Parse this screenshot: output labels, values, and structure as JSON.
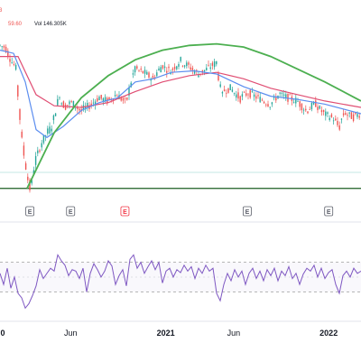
{
  "chart_data": {
    "type": "candlestick",
    "colors": {
      "up": "#26a69a",
      "down": "#ef5350",
      "ma_fast": "#5b8def",
      "ma_slow": "#e04e73",
      "arc": "#4caf50",
      "support_line": "#1b5e20",
      "rsi_line": "#7e57c2",
      "rsi_band": "#b0a4d6",
      "earnings_badge": "#5d606b",
      "earnings_badge_alert": "#f23645"
    },
    "legend": {
      "fragment_left": "3",
      "fragment_right": "59.60",
      "volume": "Vol 146.305K"
    },
    "x_labels": [
      {
        "text": "0",
        "date": "2020-01",
        "bold": true
      },
      {
        "text": "Jun",
        "date": "2020-06",
        "bold": false
      },
      {
        "text": "2021",
        "date": "2021-01",
        "bold": true
      },
      {
        "text": "Jun",
        "date": "2021-06",
        "bold": false
      },
      {
        "text": "2022",
        "date": "2022-01",
        "bold": true
      }
    ],
    "earnings_markers": [
      {
        "label": "E",
        "date": "2020-03",
        "alert": false
      },
      {
        "label": "E",
        "date": "2020-06",
        "alert": false
      },
      {
        "label": "E",
        "date": "2020-10",
        "alert": true
      },
      {
        "label": "E",
        "date": "2021-07",
        "alert": false
      },
      {
        "label": "E",
        "date": "2022-01",
        "alert": false
      }
    ],
    "price_series": [
      {
        "t": 0,
        "v": 93
      },
      {
        "t": 6,
        "v": 92
      },
      {
        "t": 12,
        "v": 85
      },
      {
        "t": 18,
        "v": 79
      },
      {
        "t": 21,
        "v": 60
      },
      {
        "t": 25,
        "v": 35
      },
      {
        "t": 30,
        "v": 15
      },
      {
        "t": 34,
        "v": 3
      },
      {
        "t": 40,
        "v": 20
      },
      {
        "t": 46,
        "v": 30
      },
      {
        "t": 52,
        "v": 37
      },
      {
        "t": 58,
        "v": 42
      },
      {
        "t": 66,
        "v": 60
      },
      {
        "t": 72,
        "v": 55
      },
      {
        "t": 80,
        "v": 57
      },
      {
        "t": 90,
        "v": 52
      },
      {
        "t": 100,
        "v": 55
      },
      {
        "t": 110,
        "v": 60
      },
      {
        "t": 120,
        "v": 58
      },
      {
        "t": 130,
        "v": 62
      },
      {
        "t": 140,
        "v": 57
      },
      {
        "t": 150,
        "v": 78
      },
      {
        "t": 160,
        "v": 76
      },
      {
        "t": 170,
        "v": 72
      },
      {
        "t": 180,
        "v": 80
      },
      {
        "t": 190,
        "v": 77
      },
      {
        "t": 200,
        "v": 83
      },
      {
        "t": 210,
        "v": 80
      },
      {
        "t": 220,
        "v": 75
      },
      {
        "t": 230,
        "v": 78
      },
      {
        "t": 240,
        "v": 82
      },
      {
        "t": 246,
        "v": 64
      },
      {
        "t": 256,
        "v": 66
      },
      {
        "t": 266,
        "v": 60
      },
      {
        "t": 276,
        "v": 63
      },
      {
        "t": 290,
        "v": 59
      },
      {
        "t": 300,
        "v": 56
      },
      {
        "t": 310,
        "v": 62
      },
      {
        "t": 320,
        "v": 60
      },
      {
        "t": 330,
        "v": 58
      },
      {
        "t": 340,
        "v": 52
      },
      {
        "t": 350,
        "v": 56
      },
      {
        "t": 360,
        "v": 50
      },
      {
        "t": 370,
        "v": 47
      },
      {
        "t": 376,
        "v": 42
      },
      {
        "t": 382,
        "v": 50
      },
      {
        "t": 392,
        "v": 48
      },
      {
        "t": 400,
        "v": 50
      }
    ],
    "ma_fast": [
      {
        "t": 0,
        "v": 90
      },
      {
        "t": 15,
        "v": 88
      },
      {
        "t": 28,
        "v": 70
      },
      {
        "t": 40,
        "v": 40
      },
      {
        "t": 52,
        "v": 35
      },
      {
        "t": 70,
        "v": 42
      },
      {
        "t": 90,
        "v": 52
      },
      {
        "t": 110,
        "v": 57
      },
      {
        "t": 130,
        "v": 60
      },
      {
        "t": 150,
        "v": 70
      },
      {
        "t": 170,
        "v": 72
      },
      {
        "t": 190,
        "v": 76
      },
      {
        "t": 215,
        "v": 77
      },
      {
        "t": 240,
        "v": 75
      },
      {
        "t": 270,
        "v": 67
      },
      {
        "t": 300,
        "v": 61
      },
      {
        "t": 330,
        "v": 59
      },
      {
        "t": 360,
        "v": 56
      },
      {
        "t": 400,
        "v": 50
      }
    ],
    "ma_slow": [
      {
        "t": 0,
        "v": 86
      },
      {
        "t": 20,
        "v": 86
      },
      {
        "t": 40,
        "v": 62
      },
      {
        "t": 60,
        "v": 55
      },
      {
        "t": 90,
        "v": 54
      },
      {
        "t": 120,
        "v": 57
      },
      {
        "t": 150,
        "v": 64
      },
      {
        "t": 180,
        "v": 70
      },
      {
        "t": 210,
        "v": 74
      },
      {
        "t": 240,
        "v": 76
      },
      {
        "t": 270,
        "v": 72
      },
      {
        "t": 300,
        "v": 66
      },
      {
        "t": 330,
        "v": 62
      },
      {
        "t": 360,
        "v": 58
      },
      {
        "t": 400,
        "v": 54
      }
    ],
    "arc": [
      {
        "t": 30,
        "v": 3
      },
      {
        "t": 60,
        "v": 38
      },
      {
        "t": 90,
        "v": 60
      },
      {
        "t": 120,
        "v": 74
      },
      {
        "t": 150,
        "v": 84
      },
      {
        "t": 180,
        "v": 90
      },
      {
        "t": 210,
        "v": 93
      },
      {
        "t": 240,
        "v": 94
      },
      {
        "t": 270,
        "v": 92
      },
      {
        "t": 300,
        "v": 86
      },
      {
        "t": 330,
        "v": 78
      },
      {
        "t": 360,
        "v": 70
      },
      {
        "t": 400,
        "v": 58
      }
    ],
    "support_level": 3,
    "rsi": {
      "upper_band": 70,
      "lower_band": 30,
      "midline": 50,
      "values": [
        {
          "t": 0,
          "v": 55
        },
        {
          "t": 4,
          "v": 40
        },
        {
          "t": 8,
          "v": 62
        },
        {
          "t": 12,
          "v": 35
        },
        {
          "t": 16,
          "v": 50
        },
        {
          "t": 20,
          "v": 28
        },
        {
          "t": 24,
          "v": 22
        },
        {
          "t": 28,
          "v": 8
        },
        {
          "t": 32,
          "v": 14
        },
        {
          "t": 36,
          "v": 25
        },
        {
          "t": 40,
          "v": 38
        },
        {
          "t": 44,
          "v": 60
        },
        {
          "t": 48,
          "v": 48
        },
        {
          "t": 52,
          "v": 55
        },
        {
          "t": 56,
          "v": 62
        },
        {
          "t": 60,
          "v": 58
        },
        {
          "t": 64,
          "v": 80
        },
        {
          "t": 68,
          "v": 72
        },
        {
          "t": 72,
          "v": 66
        },
        {
          "t": 76,
          "v": 52
        },
        {
          "t": 80,
          "v": 60
        },
        {
          "t": 84,
          "v": 58
        },
        {
          "t": 88,
          "v": 48
        },
        {
          "t": 92,
          "v": 62
        },
        {
          "t": 96,
          "v": 30
        },
        {
          "t": 100,
          "v": 55
        },
        {
          "t": 104,
          "v": 68
        },
        {
          "t": 108,
          "v": 60
        },
        {
          "t": 112,
          "v": 50
        },
        {
          "t": 116,
          "v": 58
        },
        {
          "t": 120,
          "v": 72
        },
        {
          "t": 124,
          "v": 65
        },
        {
          "t": 128,
          "v": 40
        },
        {
          "t": 132,
          "v": 52
        },
        {
          "t": 136,
          "v": 60
        },
        {
          "t": 140,
          "v": 38
        },
        {
          "t": 144,
          "v": 74
        },
        {
          "t": 148,
          "v": 80
        },
        {
          "t": 152,
          "v": 62
        },
        {
          "t": 156,
          "v": 70
        },
        {
          "t": 160,
          "v": 55
        },
        {
          "t": 164,
          "v": 64
        },
        {
          "t": 168,
          "v": 72
        },
        {
          "t": 172,
          "v": 60
        },
        {
          "t": 176,
          "v": 70
        },
        {
          "t": 180,
          "v": 42
        },
        {
          "t": 184,
          "v": 58
        },
        {
          "t": 188,
          "v": 62
        },
        {
          "t": 192,
          "v": 50
        },
        {
          "t": 196,
          "v": 60
        },
        {
          "t": 200,
          "v": 56
        },
        {
          "t": 204,
          "v": 66
        },
        {
          "t": 208,
          "v": 58
        },
        {
          "t": 212,
          "v": 64
        },
        {
          "t": 216,
          "v": 48
        },
        {
          "t": 220,
          "v": 62
        },
        {
          "t": 224,
          "v": 55
        },
        {
          "t": 228,
          "v": 66
        },
        {
          "t": 232,
          "v": 58
        },
        {
          "t": 236,
          "v": 62
        },
        {
          "t": 240,
          "v": 28
        },
        {
          "t": 244,
          "v": 18
        },
        {
          "t": 248,
          "v": 40
        },
        {
          "t": 252,
          "v": 55
        },
        {
          "t": 256,
          "v": 45
        },
        {
          "t": 260,
          "v": 60
        },
        {
          "t": 264,
          "v": 50
        },
        {
          "t": 268,
          "v": 58
        },
        {
          "t": 272,
          "v": 40
        },
        {
          "t": 276,
          "v": 55
        },
        {
          "t": 280,
          "v": 62
        },
        {
          "t": 284,
          "v": 48
        },
        {
          "t": 288,
          "v": 58
        },
        {
          "t": 292,
          "v": 45
        },
        {
          "t": 296,
          "v": 60
        },
        {
          "t": 300,
          "v": 52
        },
        {
          "t": 304,
          "v": 62
        },
        {
          "t": 308,
          "v": 45
        },
        {
          "t": 312,
          "v": 58
        },
        {
          "t": 316,
          "v": 52
        },
        {
          "t": 320,
          "v": 64
        },
        {
          "t": 324,
          "v": 48
        },
        {
          "t": 328,
          "v": 55
        },
        {
          "t": 332,
          "v": 40
        },
        {
          "t": 336,
          "v": 54
        },
        {
          "t": 340,
          "v": 62
        },
        {
          "t": 344,
          "v": 58
        },
        {
          "t": 348,
          "v": 66
        },
        {
          "t": 352,
          "v": 50
        },
        {
          "t": 356,
          "v": 62
        },
        {
          "t": 360,
          "v": 48
        },
        {
          "t": 364,
          "v": 56
        },
        {
          "t": 368,
          "v": 60
        },
        {
          "t": 372,
          "v": 40
        },
        {
          "t": 376,
          "v": 28
        },
        {
          "t": 380,
          "v": 52
        },
        {
          "t": 384,
          "v": 58
        },
        {
          "t": 388,
          "v": 50
        },
        {
          "t": 392,
          "v": 62
        },
        {
          "t": 396,
          "v": 55
        },
        {
          "t": 400,
          "v": 58
        }
      ]
    }
  }
}
